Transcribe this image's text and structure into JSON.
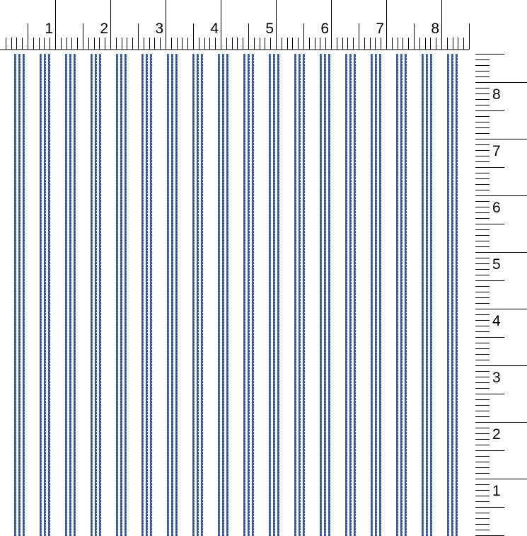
{
  "rulers": {
    "top": {
      "labels": [
        "1",
        "2",
        "3",
        "4",
        "5",
        "6",
        "7",
        "8"
      ]
    },
    "right": {
      "labels": [
        "1",
        "2",
        "3",
        "4",
        "5",
        "6",
        "7",
        "8"
      ]
    }
  },
  "swatch": {
    "pattern": "vertical triple pinstripe",
    "stripe_color": "#3a5a96",
    "background_color": "#ffffff",
    "groups": 18,
    "lines_per_group": 3
  }
}
